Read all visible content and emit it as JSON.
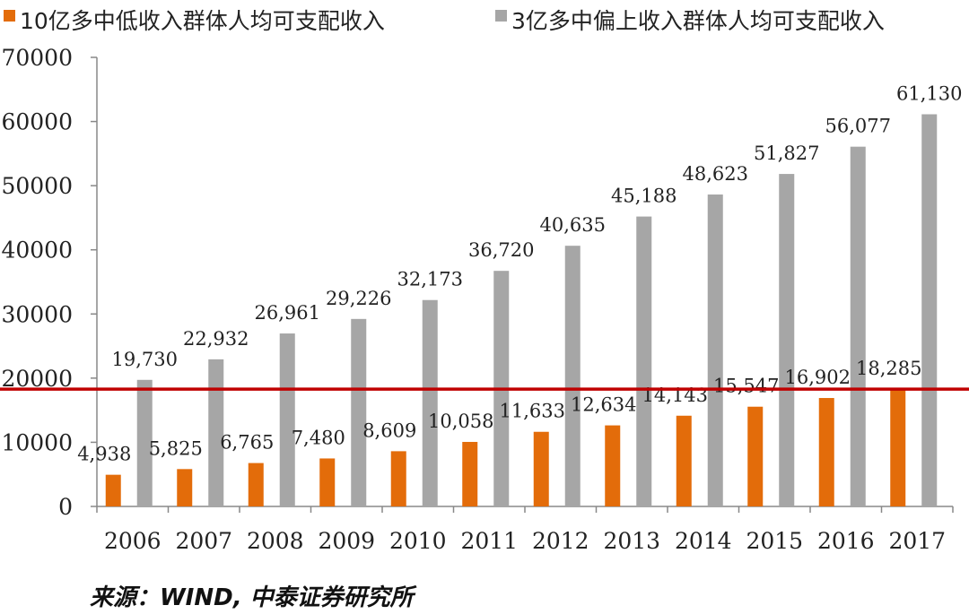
{
  "chart_data": {
    "type": "bar",
    "categories": [
      "2006",
      "2007",
      "2008",
      "2009",
      "2010",
      "2011",
      "2012",
      "2013",
      "2014",
      "2015",
      "2016",
      "2017"
    ],
    "series": [
      {
        "name": "10亿多中低收入群体人均可支配收入",
        "color": "#e36c0a",
        "values": [
          4938,
          5825,
          6765,
          7480,
          8609,
          10058,
          11633,
          12634,
          14143,
          15547,
          16902,
          18285
        ],
        "labels": [
          "4,938",
          "5,825",
          "6,765",
          "7,480",
          "8,609",
          "10,058",
          "11,633",
          "12,634",
          "14,143",
          "15,547",
          "16,902",
          "18,285"
        ]
      },
      {
        "name": "3亿多中偏上收入群体人均可支配收入",
        "color": "#a6a6a6",
        "values": [
          19730,
          22932,
          26961,
          29226,
          32173,
          36720,
          40635,
          45188,
          48623,
          51827,
          56077,
          61130
        ],
        "labels": [
          "19,730",
          "22,932",
          "26,961",
          "29,226",
          "32,173",
          "36,720",
          "40,635",
          "45,188",
          "48,623",
          "51,827",
          "56,077",
          "61,130"
        ]
      }
    ],
    "ylim": [
      0,
      70000
    ],
    "yticks": [
      0,
      10000,
      20000,
      30000,
      40000,
      50000,
      60000,
      70000
    ],
    "ytick_labels": [
      "0",
      "10000",
      "20000",
      "30000",
      "40000",
      "50000",
      "60000",
      "70000"
    ],
    "reference_line": {
      "value": 18285,
      "color": "#c00000"
    },
    "legend_position": "top",
    "grid": false
  },
  "source": "来源：WIND, 中泰证券研究所"
}
